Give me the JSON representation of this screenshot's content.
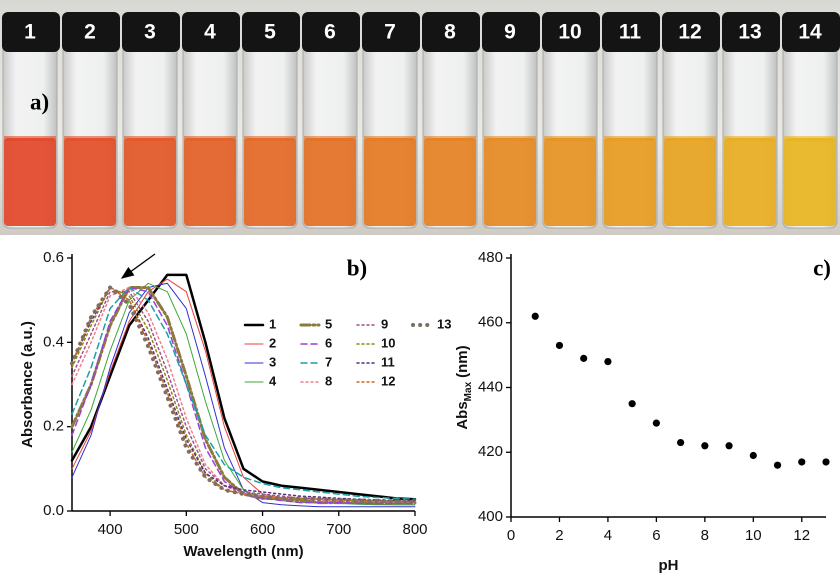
{
  "photo": {
    "panel_label": "a)",
    "vial_labels": [
      "1",
      "2",
      "3",
      "4",
      "5",
      "6",
      "7",
      "8",
      "9",
      "10",
      "11",
      "12",
      "13",
      "14"
    ]
  },
  "chart_data": [
    {
      "type": "line",
      "panel_label": "b)",
      "x_label": "Wavelength (nm)",
      "y_label": "Absorbance (a.u.)",
      "x": [
        350,
        375,
        400,
        425,
        450,
        475,
        500,
        525,
        550,
        575,
        600,
        625,
        650,
        675,
        700,
        725,
        750,
        775,
        800
      ],
      "xlim": [
        350,
        800
      ],
      "xticks": [
        400,
        500,
        600,
        700,
        800
      ],
      "ylim": [
        0,
        0.6
      ],
      "yticks": [
        {
          "value": 0,
          "label": "0.0"
        },
        0.2,
        0.4,
        0.6
      ],
      "legend": "upper right",
      "series": [
        {
          "name": "1",
          "color": "#000000",
          "dash": "solid",
          "width": 2.5,
          "values": [
            0.12,
            0.2,
            0.32,
            0.44,
            0.5,
            0.56,
            0.56,
            0.4,
            0.22,
            0.1,
            0.07,
            0.06,
            0.055,
            0.05,
            0.045,
            0.04,
            0.035,
            0.03,
            0.028
          ]
        },
        {
          "name": "2",
          "color": "#e8413c",
          "dash": "solid",
          "width": 1,
          "values": [
            0.1,
            0.19,
            0.33,
            0.45,
            0.52,
            0.55,
            0.52,
            0.38,
            0.2,
            0.08,
            0.04,
            0.03,
            0.025,
            0.02,
            0.02,
            0.018,
            0.016,
            0.015,
            0.015
          ]
        },
        {
          "name": "3",
          "color": "#3030d0",
          "dash": "solid",
          "width": 1,
          "values": [
            0.08,
            0.18,
            0.34,
            0.47,
            0.53,
            0.54,
            0.48,
            0.32,
            0.15,
            0.05,
            0.02,
            0.015,
            0.012,
            0.01,
            0.01,
            0.01,
            0.01,
            0.01,
            0.01
          ]
        },
        {
          "name": "4",
          "color": "#3aa835",
          "dash": "solid",
          "width": 1,
          "values": [
            0.14,
            0.24,
            0.38,
            0.5,
            0.54,
            0.52,
            0.42,
            0.26,
            0.12,
            0.05,
            0.03,
            0.025,
            0.02,
            0.02,
            0.018,
            0.016,
            0.015,
            0.015,
            0.015
          ]
        },
        {
          "name": "5",
          "color": "#8c7a3c",
          "dash": "dashdot",
          "width": 3,
          "values": [
            0.2,
            0.3,
            0.44,
            0.53,
            0.53,
            0.46,
            0.32,
            0.17,
            0.08,
            0.04,
            0.03,
            0.03,
            0.025,
            0.02,
            0.02,
            0.02,
            0.02,
            0.02,
            0.02
          ]
        },
        {
          "name": "6",
          "color": "#9b3fd8",
          "dash": "dash",
          "width": 1.5,
          "values": [
            0.18,
            0.3,
            0.45,
            0.53,
            0.52,
            0.44,
            0.3,
            0.15,
            0.07,
            0.04,
            0.03,
            0.025,
            0.02,
            0.02,
            0.02,
            0.018,
            0.018,
            0.018,
            0.018
          ]
        },
        {
          "name": "7",
          "color": "#1aa0a8",
          "dash": "dash",
          "width": 1.5,
          "values": [
            0.23,
            0.34,
            0.48,
            0.53,
            0.5,
            0.42,
            0.3,
            0.18,
            0.11,
            0.08,
            0.065,
            0.055,
            0.05,
            0.045,
            0.04,
            0.035,
            0.032,
            0.03,
            0.028
          ]
        },
        {
          "name": "8",
          "color": "#f07f8a",
          "dash": "dot",
          "width": 1.5,
          "values": [
            0.3,
            0.4,
            0.51,
            0.53,
            0.47,
            0.36,
            0.22,
            0.11,
            0.06,
            0.04,
            0.035,
            0.03,
            0.03,
            0.025,
            0.025,
            0.025,
            0.022,
            0.022,
            0.022
          ]
        },
        {
          "name": "9",
          "color": "#a0508f",
          "dash": "dot",
          "width": 1.5,
          "values": [
            0.32,
            0.42,
            0.52,
            0.52,
            0.45,
            0.33,
            0.2,
            0.1,
            0.06,
            0.045,
            0.04,
            0.035,
            0.03,
            0.03,
            0.028,
            0.026,
            0.025,
            0.024,
            0.024
          ]
        },
        {
          "name": "10",
          "color": "#8a8a10",
          "dash": "dot",
          "width": 1.5,
          "values": [
            0.34,
            0.44,
            0.53,
            0.51,
            0.43,
            0.31,
            0.18,
            0.09,
            0.05,
            0.04,
            0.035,
            0.03,
            0.03,
            0.028,
            0.026,
            0.025,
            0.024,
            0.023,
            0.022
          ]
        },
        {
          "name": "11",
          "color": "#5a2d82",
          "dash": "dot",
          "width": 1.5,
          "values": [
            0.35,
            0.45,
            0.53,
            0.5,
            0.41,
            0.29,
            0.17,
            0.09,
            0.06,
            0.05,
            0.045,
            0.04,
            0.035,
            0.033,
            0.03,
            0.028,
            0.026,
            0.025,
            0.024
          ]
        },
        {
          "name": "12",
          "color": "#d2691e",
          "dash": "dot",
          "width": 1.5,
          "values": [
            0.35,
            0.46,
            0.53,
            0.5,
            0.4,
            0.28,
            0.16,
            0.08,
            0.05,
            0.04,
            0.035,
            0.03,
            0.03,
            0.028,
            0.026,
            0.025,
            0.024,
            0.023,
            0.022
          ]
        },
        {
          "name": "13",
          "color": "#7d6e62",
          "dash": "bigdot",
          "width": 4,
          "values": [
            0.35,
            0.46,
            0.53,
            0.49,
            0.39,
            0.27,
            0.15,
            0.08,
            0.05,
            0.04,
            0.035,
            0.03,
            0.03,
            0.028,
            0.026,
            0.025,
            0.024,
            0.023,
            0.022
          ]
        }
      ]
    },
    {
      "type": "scatter",
      "panel_label": "c)",
      "x_label": "pH",
      "y_label": "Abs",
      "y_label_subscript": "Max",
      "y_label_unit": "(nm)",
      "color": "#000000",
      "x": [
        1,
        2,
        3,
        4,
        5,
        6,
        7,
        8,
        9,
        10,
        11,
        12,
        13
      ],
      "values": [
        462,
        453,
        449,
        448,
        435,
        429,
        423,
        422,
        422,
        419,
        416,
        417,
        417
      ],
      "xlim": [
        0,
        13
      ],
      "xticks": [
        0,
        2,
        4,
        6,
        8,
        10,
        12
      ],
      "ylim": [
        400,
        480
      ],
      "yticks": [
        400,
        420,
        440,
        460,
        480
      ]
    }
  ]
}
